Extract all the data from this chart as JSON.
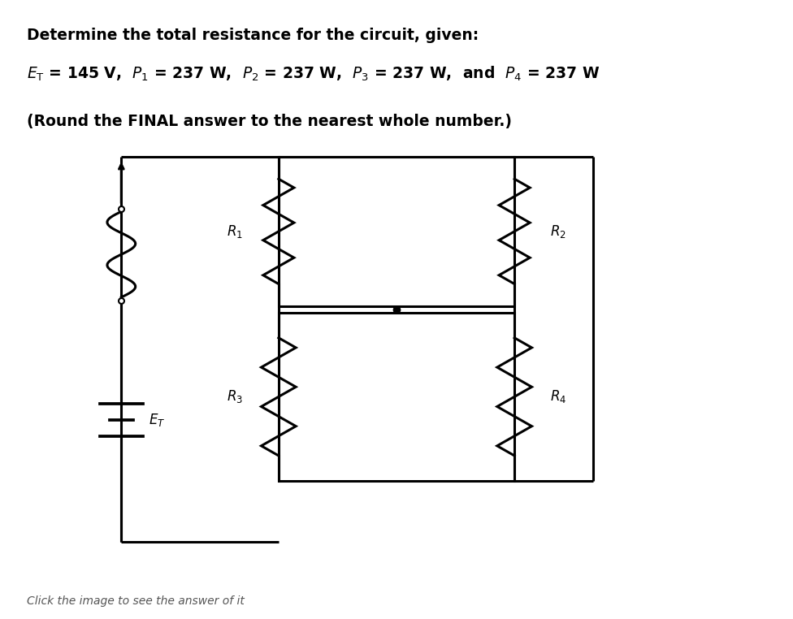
{
  "title_line1": "Determine the total resistance for the circuit, given:",
  "title_line2": "E_T = 145 V, P_1 = 237 W, P_2 = 237 W, P_3 = 237 W, and P_4 = 237 W",
  "title_line3": "(Round the FINAL answer to the nearest whole number.)",
  "bg_color": "#ffffff",
  "line_color": "#000000",
  "line_width": 2.2,
  "fig_width": 9.76,
  "fig_height": 7.62
}
